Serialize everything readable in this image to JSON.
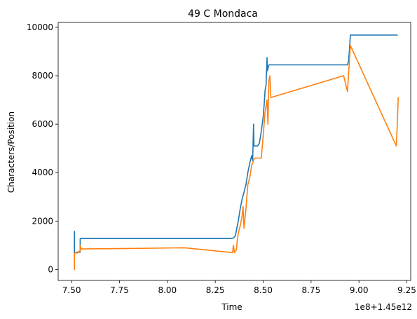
{
  "chart_data": {
    "type": "line",
    "title": "49 C Mondaca",
    "xlabel": "Time",
    "ylabel": "Characters/Position",
    "x_offset_label": "1e8+1.45e12",
    "xlim": [
      7.43,
      9.27
    ],
    "ylim": [
      -450,
      10200
    ],
    "x_ticks": [
      7.5,
      7.75,
      8.0,
      8.25,
      8.5,
      8.75,
      9.0,
      9.25
    ],
    "x_tick_labels": [
      "7.50",
      "7.75",
      "8.00",
      "8.25",
      "8.50",
      "8.75",
      "9.00",
      "9.25"
    ],
    "y_ticks": [
      0,
      2000,
      4000,
      6000,
      8000,
      10000
    ],
    "y_tick_labels": [
      "0",
      "2000",
      "4000",
      "6000",
      "8000",
      "10000"
    ],
    "grid": false,
    "series": [
      {
        "color": "#1f77b4",
        "points": [
          [
            7.515,
            700
          ],
          [
            7.515,
            1580
          ],
          [
            7.515,
            650
          ],
          [
            7.52,
            700
          ],
          [
            7.53,
            720
          ],
          [
            7.545,
            720
          ],
          [
            7.545,
            1280
          ],
          [
            7.6,
            1280
          ],
          [
            8.0,
            1280
          ],
          [
            8.33,
            1280
          ],
          [
            8.345,
            1300
          ],
          [
            8.355,
            1400
          ],
          [
            8.36,
            1600
          ],
          [
            8.37,
            2000
          ],
          [
            8.38,
            2500
          ],
          [
            8.39,
            2900
          ],
          [
            8.4,
            3200
          ],
          [
            8.41,
            3500
          ],
          [
            8.42,
            4000
          ],
          [
            8.43,
            4400
          ],
          [
            8.44,
            4700
          ],
          [
            8.445,
            4500
          ],
          [
            8.45,
            6000
          ],
          [
            8.452,
            5100
          ],
          [
            8.47,
            5100
          ],
          [
            8.48,
            5200
          ],
          [
            8.49,
            5700
          ],
          [
            8.5,
            6300
          ],
          [
            8.505,
            6800
          ],
          [
            8.51,
            7400
          ],
          [
            8.515,
            7600
          ],
          [
            8.52,
            8750
          ],
          [
            8.522,
            8200
          ],
          [
            8.53,
            8450
          ],
          [
            8.6,
            8450
          ],
          [
            8.75,
            8450
          ],
          [
            8.94,
            8450
          ],
          [
            8.945,
            8600
          ],
          [
            8.95,
            9000
          ],
          [
            8.955,
            9680
          ],
          [
            9.0,
            9680
          ],
          [
            9.1,
            9680
          ],
          [
            9.2,
            9680
          ]
        ]
      },
      {
        "color": "#ff7f0e",
        "points": [
          [
            7.515,
            0
          ],
          [
            7.515,
            650
          ],
          [
            7.52,
            700
          ],
          [
            7.53,
            680
          ],
          [
            7.54,
            760
          ],
          [
            7.545,
            760
          ],
          [
            7.545,
            1000
          ],
          [
            7.55,
            850
          ],
          [
            7.8,
            870
          ],
          [
            8.09,
            900
          ],
          [
            8.34,
            700
          ],
          [
            8.345,
            1000
          ],
          [
            8.35,
            700
          ],
          [
            8.36,
            800
          ],
          [
            8.365,
            1200
          ],
          [
            8.37,
            1500
          ],
          [
            8.38,
            1800
          ],
          [
            8.39,
            2200
          ],
          [
            8.395,
            2600
          ],
          [
            8.4,
            1700
          ],
          [
            8.41,
            2500
          ],
          [
            8.42,
            3500
          ],
          [
            8.43,
            3800
          ],
          [
            8.44,
            4300
          ],
          [
            8.45,
            4500
          ],
          [
            8.455,
            4600
          ],
          [
            8.47,
            4600
          ],
          [
            8.49,
            4600
          ],
          [
            8.5,
            5500
          ],
          [
            8.51,
            6500
          ],
          [
            8.52,
            7000
          ],
          [
            8.525,
            6000
          ],
          [
            8.53,
            7800
          ],
          [
            8.535,
            8000
          ],
          [
            8.54,
            7100
          ],
          [
            8.92,
            8000
          ],
          [
            8.94,
            7350
          ],
          [
            8.945,
            8000
          ],
          [
            8.95,
            8600
          ],
          [
            8.955,
            9250
          ],
          [
            9.195,
            5100
          ],
          [
            9.2,
            6000
          ],
          [
            9.205,
            7100
          ]
        ]
      }
    ]
  }
}
